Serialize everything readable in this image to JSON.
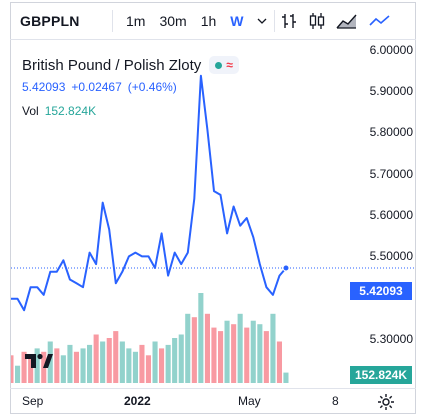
{
  "header": {
    "symbol": "GBPPLN",
    "timeframes": [
      "1m",
      "30m",
      "1h",
      "W"
    ],
    "active_timeframe": "W",
    "more_icon": "chevron-down-icon",
    "chart_type_icons": [
      "bar-chart-icon",
      "candlestick-icon",
      "area-chart-icon",
      "line-chart-icon"
    ]
  },
  "legend": {
    "title": "British Pound / Polish Zloty",
    "last": "5.42093",
    "change": "+0.02467",
    "change_pct": "(+0.46%)",
    "vol_label": "Vol",
    "vol_value": "152.824K"
  },
  "colors": {
    "line": "#2962ff",
    "up": "#26a69a",
    "down": "#f23645"
  },
  "axis": {
    "y_ticks": [
      "6.00000",
      "5.90000",
      "5.80000",
      "5.70000",
      "5.60000",
      "5.50000",
      "5.30000"
    ],
    "price_tag": "5.42093",
    "vol_tag": "152.824K",
    "x_labels": [
      "Sep",
      "2022",
      "May",
      "8"
    ],
    "settings_icon": "gear-icon"
  },
  "chart_data": {
    "type": "line",
    "ylim": [
      5.23,
      6.0
    ],
    "series": [
      {
        "values": [
          5.34,
          5.34,
          5.31,
          5.37,
          5.37,
          5.35,
          5.41,
          5.41,
          5.44,
          5.39,
          5.38,
          5.37,
          5.46,
          5.43,
          5.59,
          5.52,
          5.38,
          5.41,
          5.45,
          5.46,
          5.45,
          5.45,
          5.42,
          5.51,
          5.4,
          5.46,
          5.43,
          5.46,
          5.6,
          5.92,
          5.78,
          5.62,
          5.61,
          5.51,
          5.58,
          5.53,
          5.55,
          5.5,
          5.43,
          5.37,
          5.35,
          5.4,
          5.42
        ]
      }
    ],
    "volume": {
      "values": [
        8,
        5,
        9,
        8,
        10,
        9,
        12,
        10,
        8,
        11,
        9,
        10,
        11,
        14,
        12,
        13,
        15,
        12,
        10,
        9,
        11,
        8,
        12,
        10,
        11,
        13,
        14,
        20,
        19,
        26,
        20,
        16,
        15,
        18,
        17,
        20,
        16,
        18,
        17,
        15,
        20,
        12,
        3
      ],
      "colors": [
        "down",
        "up",
        "down",
        "down",
        "up",
        "down",
        "up",
        "down",
        "up",
        "up",
        "down",
        "up",
        "up",
        "down",
        "up",
        "down",
        "down",
        "up",
        "up",
        "up",
        "down",
        "down",
        "up",
        "down",
        "up",
        "up",
        "up",
        "up",
        "down",
        "up",
        "down",
        "down",
        "down",
        "up",
        "down",
        "up",
        "down",
        "up",
        "up",
        "down",
        "up",
        "down",
        "up"
      ]
    }
  }
}
